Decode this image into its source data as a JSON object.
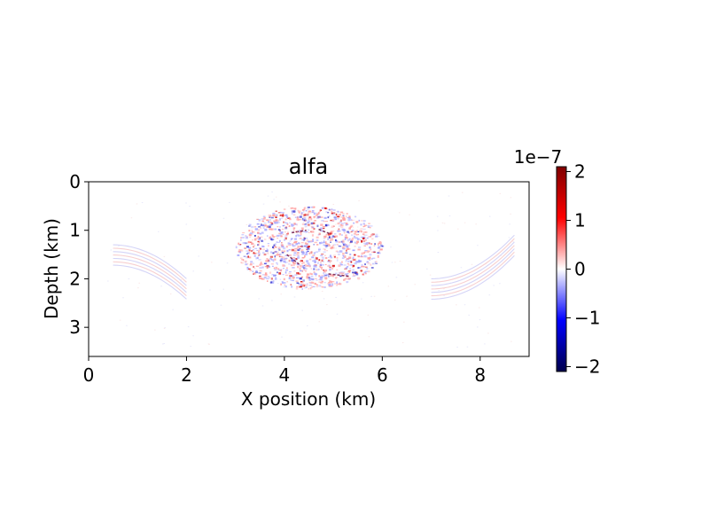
{
  "chart_data": {
    "type": "heatmap",
    "title": "alfa",
    "xlabel": "X position (km)",
    "ylabel": "Depth (km)",
    "xlim": [
      0,
      9
    ],
    "ylim": [
      3.6,
      0
    ],
    "x_ticks": [
      "0",
      "2",
      "4",
      "6",
      "8"
    ],
    "y_ticks": [
      "0",
      "1",
      "2",
      "3"
    ],
    "colormap": "seismic",
    "color_scale_label": "1e−7",
    "color_range": [
      -2.1e-07,
      2.1e-07
    ],
    "colorbar_ticks": [
      "−2",
      "−1",
      "0",
      "1",
      "2"
    ],
    "colors": {
      "negative": "#00004c",
      "mid": "#ffffff",
      "positive": "#7f0000"
    },
    "features": [
      {
        "name": "central-scatter-cluster",
        "x_range": [
          3.0,
          6.0
        ],
        "depth_range": [
          0.5,
          2.2
        ],
        "amplitude": "±2e-7"
      },
      {
        "name": "left-dipping-arc",
        "x_range": [
          0.5,
          2.0
        ],
        "depth_range": [
          1.3,
          2.0
        ],
        "amplitude": "weak"
      },
      {
        "name": "right-dipping-arc",
        "x_range": [
          7.0,
          8.7
        ],
        "depth_range": [
          1.1,
          2.0
        ],
        "amplitude": "weak"
      }
    ]
  }
}
